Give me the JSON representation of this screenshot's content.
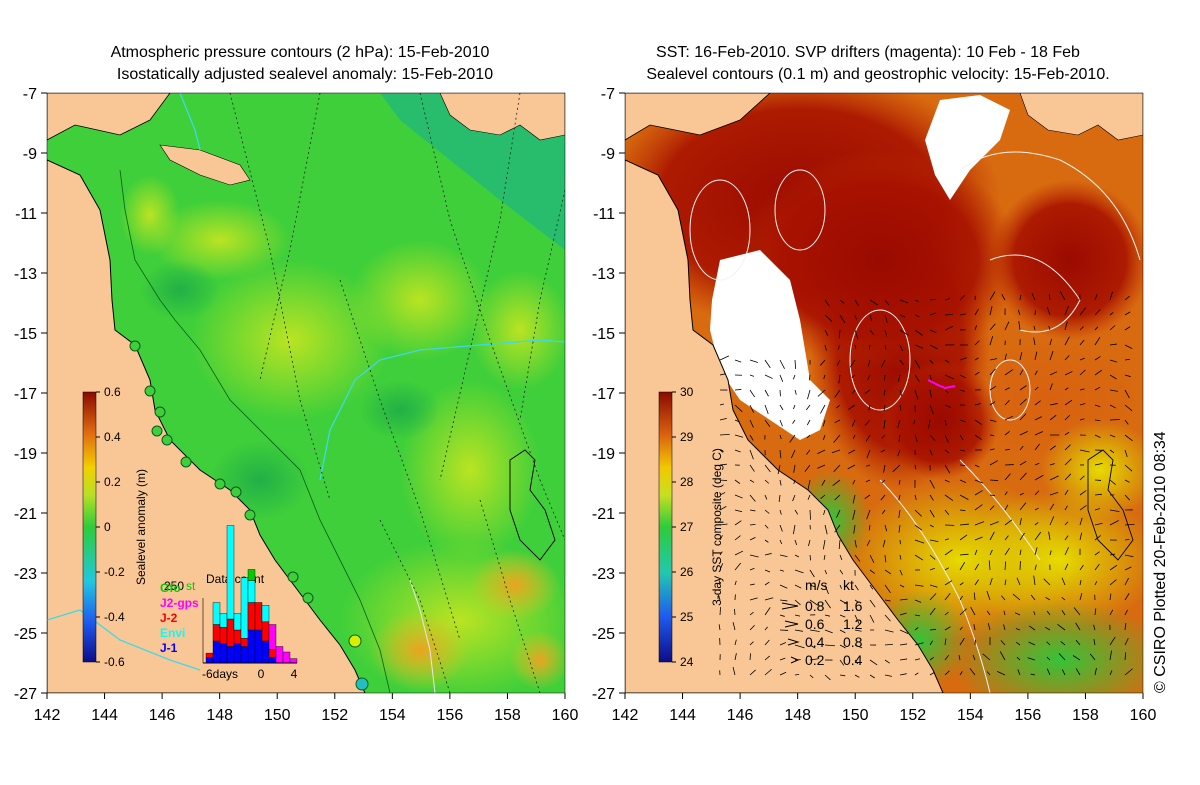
{
  "left_panel": {
    "title_line1": "Atmospheric pressure contours (2 hPa): 15-Feb-2010",
    "title_line2": "Isostatically adjusted sealevel anomaly: 15-Feb-2010",
    "colorbar": {
      "label": "Sealevel anomaly (m)",
      "ticks": [
        "0.6",
        "0.4",
        "0.2",
        "0",
        "-0.2",
        "-0.4",
        "-0.6"
      ]
    },
    "data_count": {
      "title": "Data count",
      "max_label": "250",
      "legend": [
        {
          "label": "Gfo",
          "color": "#00cc00"
        },
        {
          "label": "J2-gps",
          "color": "#ff00ff"
        },
        {
          "label": "J-2",
          "color": "#ff0000"
        },
        {
          "label": "Envi",
          "color": "#00ffff"
        },
        {
          "label": "J-1",
          "color": "#0000ff"
        }
      ],
      "legend_overlap_text": "st",
      "x_ticks": [
        "-6days",
        "0",
        "4"
      ]
    }
  },
  "right_panel": {
    "title_line1": "SST: 16-Feb-2010. SVP drifters (magenta): 10 Feb - 18 Feb",
    "title_line2": "Sealevel contours (0.1 m) and geostrophic velocity: 15-Feb-2010.",
    "colorbar": {
      "label": "3-day SST composite (deg C)",
      "ticks": [
        "30",
        "29",
        "28",
        "27",
        "26",
        "25",
        "24"
      ]
    },
    "velocity_legend": {
      "header_ms": "m/s",
      "header_kt": "kt",
      "rows": [
        {
          "ms": "0.8",
          "kt": "1.6"
        },
        {
          "ms": "0.6",
          "kt": "1.2"
        },
        {
          "ms": "0.4",
          "kt": "0.8"
        },
        {
          "ms": "0.2",
          "kt": "0.4"
        }
      ]
    }
  },
  "axes": {
    "lat_ticks": [
      "-7",
      "-9",
      "-11",
      "-13",
      "-15",
      "-17",
      "-19",
      "-21",
      "-23",
      "-25",
      "-27"
    ],
    "lon_ticks": [
      "142",
      "144",
      "146",
      "148",
      "150",
      "152",
      "154",
      "156",
      "158",
      "160"
    ]
  },
  "credit": "© CSIRO Plotted 20-Feb-2010 08:34",
  "colors": {
    "land": "#f9c796",
    "sea_green": "#3fcf3a",
    "sst_hot": "#a00c00"
  }
}
